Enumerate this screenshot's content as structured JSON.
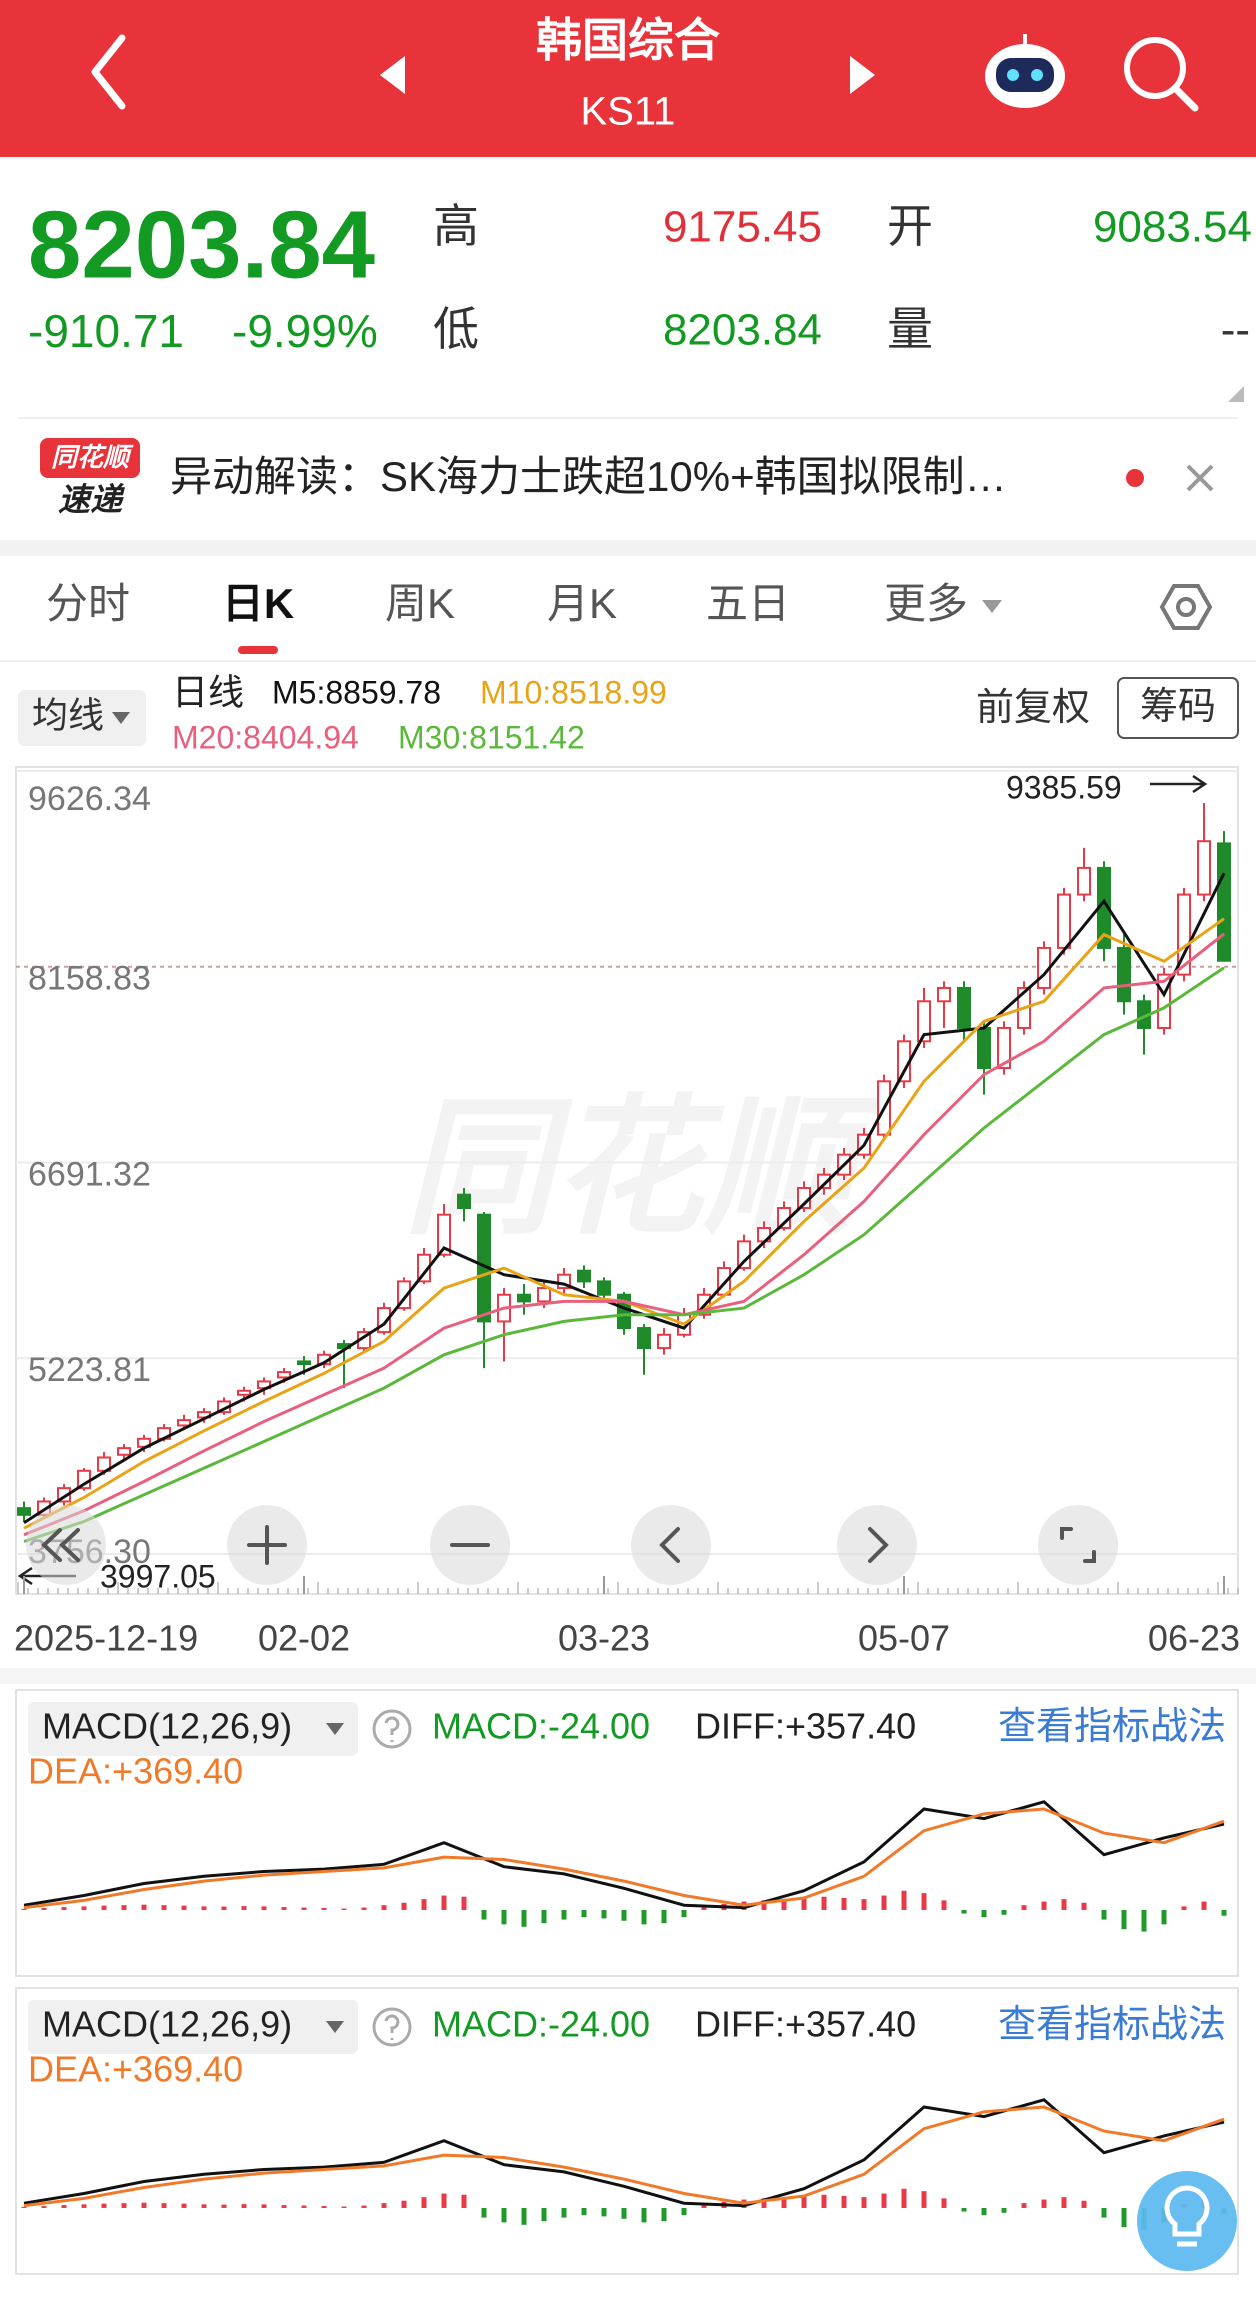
{
  "header": {
    "title": "韩国综合",
    "code": "KS11"
  },
  "quote": {
    "price": 8203.84,
    "change": -910.71,
    "change_pct": "-9.99%",
    "high_label": "高",
    "high": 9175.45,
    "open_label": "开",
    "open": 9083.54,
    "low_label": "低",
    "low": 8203.84,
    "volume_label": "量",
    "volume": "--"
  },
  "news": {
    "logo_top": "同花顺",
    "logo_bottom": "速递",
    "text": "异动解读：SK海力士跌超10%+韩国拟限制…"
  },
  "tabs": [
    "分时",
    "日K",
    "周K",
    "月K",
    "五日",
    "更多"
  ],
  "active_tab": 1,
  "toolbar": {
    "ma_button": "均线",
    "period": "日线",
    "adjust": "前复权",
    "chips": "筹码"
  },
  "kline": {
    "type": "candlestick",
    "watermark": "同花顺",
    "categories": [
      "2025-12-19",
      null,
      null,
      null,
      null,
      null,
      null,
      null,
      null,
      null,
      null,
      null,
      null,
      null,
      "02-02",
      null,
      null,
      null,
      null,
      null,
      null,
      null,
      null,
      null,
      null,
      null,
      null,
      null,
      null,
      "03-23",
      null,
      null,
      null,
      null,
      null,
      null,
      null,
      null,
      null,
      null,
      null,
      null,
      null,
      null,
      "05-07",
      null,
      null,
      null,
      null,
      null,
      null,
      null,
      null,
      null,
      null,
      null,
      null,
      null,
      null,
      null,
      "06-23"
    ],
    "ohlc": [
      [
        4100,
        4150,
        3997.05,
        4050
      ],
      [
        4050,
        4180,
        4030,
        4150
      ],
      [
        4150,
        4280,
        4120,
        4250
      ],
      [
        4250,
        4400,
        4230,
        4380
      ],
      [
        4380,
        4520,
        4350,
        4480
      ],
      [
        4500,
        4580,
        4460,
        4550
      ],
      [
        4560,
        4650,
        4520,
        4620
      ],
      [
        4620,
        4730,
        4600,
        4700
      ],
      [
        4720,
        4800,
        4690,
        4760
      ],
      [
        4780,
        4850,
        4740,
        4820
      ],
      [
        4820,
        4930,
        4800,
        4900
      ],
      [
        4950,
        5010,
        4900,
        4980
      ],
      [
        5000,
        5080,
        4950,
        5050
      ],
      [
        5080,
        5150,
        5040,
        5120
      ],
      [
        5200,
        5240,
        5100,
        5180
      ],
      [
        5180,
        5280,
        5150,
        5250
      ],
      [
        5330,
        5360,
        5000,
        5300
      ],
      [
        5300,
        5450,
        5280,
        5420
      ],
      [
        5420,
        5640,
        5400,
        5600
      ],
      [
        5600,
        5830,
        5580,
        5800
      ],
      [
        5800,
        6050,
        5780,
        6000
      ],
      [
        6000,
        6380,
        5980,
        6300
      ],
      [
        6450,
        6500,
        6250,
        6350
      ],
      [
        6300,
        6320,
        5150,
        5500
      ],
      [
        5500,
        5750,
        5200,
        5700
      ],
      [
        5700,
        5780,
        5550,
        5650
      ],
      [
        5650,
        5800,
        5600,
        5750
      ],
      [
        5750,
        5900,
        5700,
        5850
      ],
      [
        5880,
        5920,
        5750,
        5800
      ],
      [
        5800,
        5830,
        5650,
        5700
      ],
      [
        5700,
        5720,
        5400,
        5450
      ],
      [
        5450,
        5480,
        5100,
        5300
      ],
      [
        5300,
        5450,
        5250,
        5400
      ],
      [
        5400,
        5600,
        5380,
        5550
      ],
      [
        5550,
        5750,
        5520,
        5700
      ],
      [
        5700,
        5950,
        5680,
        5900
      ],
      [
        5900,
        6150,
        5880,
        6100
      ],
      [
        6100,
        6250,
        6050,
        6200
      ],
      [
        6200,
        6400,
        6180,
        6350
      ],
      [
        6350,
        6550,
        6320,
        6500
      ],
      [
        6500,
        6650,
        6450,
        6600
      ],
      [
        6600,
        6800,
        6560,
        6750
      ],
      [
        6750,
        6950,
        6720,
        6900
      ],
      [
        6900,
        7350,
        6880,
        7300
      ],
      [
        7300,
        7650,
        7250,
        7600
      ],
      [
        7600,
        8000,
        7550,
        7900
      ],
      [
        7900,
        8050,
        7700,
        8000
      ],
      [
        8000,
        8050,
        7600,
        7700
      ],
      [
        7700,
        7750,
        7200,
        7400
      ],
      [
        7400,
        7750,
        7350,
        7700
      ],
      [
        7700,
        8050,
        7650,
        8000
      ],
      [
        8000,
        8350,
        7950,
        8300
      ],
      [
        8300,
        8750,
        8250,
        8700
      ],
      [
        8700,
        9050,
        8650,
        8900
      ],
      [
        8900,
        8950,
        8200,
        8300
      ],
      [
        8300,
        8400,
        7800,
        7900
      ],
      [
        7900,
        7950,
        7500,
        7700
      ],
      [
        7700,
        8150,
        7650,
        8100
      ],
      [
        8100,
        8750,
        8050,
        8700
      ],
      [
        8700,
        9385.59,
        8650,
        9100
      ],
      [
        9083.54,
        9175.45,
        8203.84,
        8203.84
      ]
    ],
    "up_color": "#e83a46",
    "down_color": "#1f8a2a",
    "ylim": [
      3756.3,
      9626.34
    ],
    "yticks": [
      9626.34,
      8158.83,
      6691.32,
      5223.81,
      {
        "value": 3756.3,
        "label": "3756.30"
      }
    ],
    "dashed_tick": 1,
    "max_label": 9385.59,
    "min_label": 3997.05,
    "ma_x": [
      0,
      3,
      6,
      9,
      12,
      15,
      18,
      21,
      24,
      27,
      30,
      33,
      36,
      39,
      42,
      45,
      48,
      51,
      54,
      57,
      60
    ],
    "series": [
      {
        "label": "M5:8859.78",
        "color": "#111111",
        "values": [
          3990,
          4280,
          4550,
          4770,
          4990,
          5190,
          5480,
          6050,
          5850,
          5780,
          5600,
          5450,
          5950,
          6380,
          6820,
          7650,
          7700,
          8100,
          8650,
          7950,
          8859.78
        ]
      },
      {
        "label": "M10:8518.99",
        "color": "#e8a317",
        "values": [
          3950,
          4180,
          4450,
          4680,
          4900,
          5110,
          5350,
          5750,
          5900,
          5700,
          5650,
          5480,
          5800,
          6250,
          6650,
          7300,
          7750,
          7900,
          8400,
          8200,
          8518.99
        ]
      },
      {
        "label": "M20:8404.94",
        "color": "#e8607e",
        "values": [
          3900,
          4080,
          4300,
          4530,
          4750,
          4950,
          5150,
          5450,
          5600,
          5650,
          5650,
          5550,
          5650,
          6000,
          6400,
          6900,
          7350,
          7600,
          8000,
          8050,
          8404.94
        ]
      },
      {
        "label": "M30:8151.42",
        "color": "#5cb83c",
        "values": [
          3850,
          4000,
          4200,
          4400,
          4600,
          4800,
          5000,
          5250,
          5400,
          5500,
          5550,
          5550,
          5600,
          5850,
          6150,
          6550,
          6950,
          7300,
          7650,
          7850,
          8151.42
        ]
      }
    ]
  },
  "macd_panels": [
    {
      "name": "MACD(12,26,9)",
      "macd": "MACD:-24.00",
      "diff": "DIFF:+357.40",
      "dea": "DEA:+369.40",
      "link": "查看指标战法"
    },
    {
      "name": "MACD(12,26,9)",
      "macd": "MACD:-24.00",
      "diff": "DIFF:+357.40",
      "dea": "DEA:+369.40",
      "link": "查看指标战法"
    }
  ],
  "macd": {
    "type": "macd",
    "ylim": [
      -100,
      520
    ],
    "x": [
      0,
      3,
      6,
      9,
      12,
      15,
      18,
      21,
      24,
      27,
      30,
      33,
      36,
      39,
      42,
      45,
      48,
      51,
      54,
      57,
      60
    ],
    "diff_color": "#111111",
    "dea_color": "#f07a2a",
    "up_color": "#e83a46",
    "down_color": "#1f9a2a",
    "diff": [
      20,
      60,
      110,
      140,
      160,
      170,
      190,
      280,
      180,
      150,
      90,
      20,
      10,
      80,
      200,
      420,
      380,
      450,
      230,
      300,
      357.4
    ],
    "dea": [
      10,
      40,
      85,
      120,
      145,
      160,
      175,
      220,
      210,
      170,
      120,
      60,
      20,
      50,
      140,
      330,
      400,
      420,
      320,
      280,
      369.4
    ],
    "histogram": [
      5,
      8,
      12,
      15,
      18,
      20,
      22,
      20,
      18,
      15,
      14,
      16,
      15,
      12,
      10,
      8,
      6,
      10,
      20,
      30,
      45,
      60,
      55,
      -40,
      -60,
      -70,
      -55,
      -40,
      -30,
      -35,
      -45,
      -60,
      -55,
      -30,
      10,
      25,
      35,
      40,
      45,
      50,
      55,
      50,
      45,
      60,
      80,
      70,
      40,
      -15,
      -30,
      -20,
      20,
      35,
      45,
      30,
      -40,
      -80,
      -90,
      -60,
      15,
      35,
      -24
    ]
  }
}
